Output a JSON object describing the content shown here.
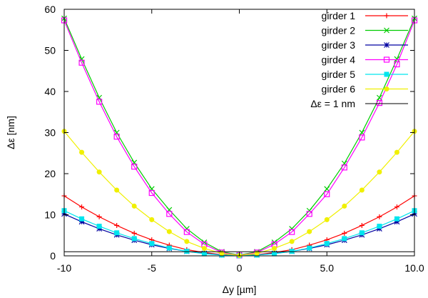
{
  "chart_data": {
    "type": "line",
    "xlabel": "Δy [µm]",
    "ylabel": "Δε [nm]",
    "xlim": [
      -10,
      10
    ],
    "ylim": [
      0,
      60
    ],
    "xticks": [
      {
        "value": -10,
        "label": "-10"
      },
      {
        "value": -5,
        "label": "-5"
      },
      {
        "value": 0,
        "label": "0"
      },
      {
        "value": 5,
        "label": "5.0"
      },
      {
        "value": 10,
        "label": "10.0"
      }
    ],
    "yticks": [
      {
        "value": 0,
        "label": "0"
      },
      {
        "value": 10,
        "label": "10"
      },
      {
        "value": 20,
        "label": "20"
      },
      {
        "value": 30,
        "label": "30"
      },
      {
        "value": 40,
        "label": "40"
      },
      {
        "value": 50,
        "label": "50"
      },
      {
        "value": 60,
        "label": "60"
      }
    ],
    "grid": false,
    "legend_position": "top-right",
    "x": [
      -10,
      -9,
      -8,
      -7,
      -6,
      -5,
      -4,
      -3,
      -2,
      -1,
      0,
      1,
      2,
      3,
      4,
      5,
      6,
      7,
      8,
      9,
      10
    ],
    "series": [
      {
        "name": "girder 1",
        "color": "#ff0000",
        "marker": "plus",
        "values": [
          14.6,
          11.9,
          9.5,
          7.4,
          5.5,
          3.9,
          2.6,
          1.5,
          0.8,
          0.3,
          0.1,
          0.3,
          0.8,
          1.5,
          2.6,
          3.9,
          5.5,
          7.4,
          9.5,
          11.9,
          14.6
        ]
      },
      {
        "name": "girder 2",
        "color": "#00cc00",
        "marker": "x",
        "values": [
          57.8,
          47.9,
          38.5,
          30.0,
          22.7,
          16.3,
          11.2,
          6.6,
          3.3,
          1.0,
          0.2,
          1.0,
          3.3,
          6.6,
          11.0,
          16.3,
          22.5,
          30.0,
          38.5,
          47.9,
          57.8
        ]
      },
      {
        "name": "girder 3",
        "color": "#0000a0",
        "marker": "star",
        "values": [
          10.2,
          8.3,
          6.6,
          5.1,
          3.8,
          2.7,
          1.8,
          1.1,
          0.6,
          0.2,
          0.05,
          0.2,
          0.6,
          1.1,
          1.8,
          2.7,
          3.8,
          5.1,
          6.6,
          8.3,
          10.2
        ]
      },
      {
        "name": "girder 4",
        "color": "#ff00ff",
        "marker": "square",
        "values": [
          57.3,
          47.0,
          37.5,
          29.0,
          21.7,
          15.3,
          10.2,
          5.8,
          2.8,
          0.8,
          0.1,
          0.8,
          2.8,
          5.8,
          10.2,
          15.0,
          21.5,
          28.8,
          37.2,
          46.6,
          57.3
        ]
      },
      {
        "name": "girder 5",
        "color": "#00e5ee",
        "marker": "filled-square",
        "values": [
          11.0,
          9.0,
          7.2,
          5.6,
          4.2,
          3.0,
          1.9,
          1.1,
          0.5,
          0.2,
          0.05,
          0.2,
          0.5,
          1.1,
          1.9,
          3.0,
          4.2,
          5.6,
          7.2,
          9.0,
          11.0
        ]
      },
      {
        "name": "girder 6",
        "color": "#f0f000",
        "marker": "filled-circle",
        "values": [
          30.3,
          25.2,
          20.4,
          16.0,
          12.1,
          8.8,
          5.9,
          3.5,
          1.8,
          0.6,
          0.1,
          0.6,
          1.8,
          3.5,
          5.9,
          8.8,
          12.1,
          16.0,
          20.4,
          25.2,
          30.3
        ]
      },
      {
        "name": "Δε = 1 nm",
        "color": "#000000",
        "marker": "none",
        "values": [
          1,
          1,
          1,
          1,
          1,
          1,
          1,
          1,
          1,
          1,
          1,
          1,
          1,
          1,
          1,
          1,
          1,
          1,
          1,
          1,
          1
        ]
      }
    ]
  }
}
